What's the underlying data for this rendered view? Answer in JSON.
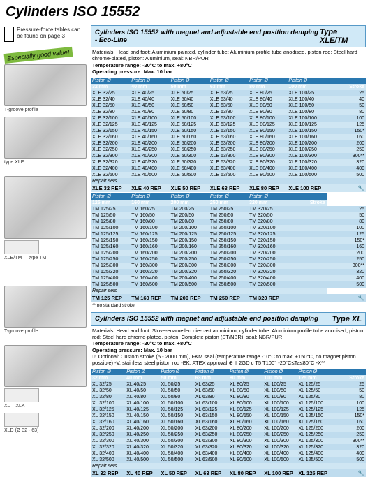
{
  "page_title": "Cylinders ISO 15552",
  "pressure_note": "Pressure-force tables can be found on page 3",
  "good_value": "Especially good value!",
  "captions": {
    "tgroove": "T-groove profile",
    "type_xle": "type XLE",
    "type_tm": "type TM",
    "xle_tm": "XLE/TM",
    "xl": "XL",
    "xlk": "XLK",
    "xld": "XLD (Ø 32 - 63)"
  },
  "section1": {
    "title": "Cylinders ISO 15552 with magnet and adjustable end position damping - Eco-Line",
    "type": "Type XLE/TM",
    "specs": "Materials: Head and foot: Aluminium painted, cylinder tube: Aluminium profile tube anodised, piston rod: Steel hard chrome-plated, piston: Aluminium, seal: NBR/PUR",
    "temp": "Temperature range: -20°C to max. +80°C",
    "press": "Operating pressure: Max. 10 bar",
    "piston_label": "Piston Ø",
    "stroke_label": "Stroke",
    "repair_label": "Repair sets",
    "cols1": [
      "32 mm",
      "40 mm",
      "50 mm",
      "63 mm",
      "80 mm",
      "100 mm"
    ],
    "strokes1": [
      "25",
      "40",
      "50",
      "80",
      "100",
      "125",
      "150*",
      "160",
      "200",
      "250",
      "300**",
      "320",
      "400",
      "500"
    ],
    "data1": [
      [
        "XLE 32/25",
        "XLE 40/25",
        "XLE 50/25",
        "XLE 63/25",
        "XLE 80/25",
        "XLE 100/25"
      ],
      [
        "XLE 32/40",
        "XLE 40/40",
        "XLE 50/40",
        "XLE 63/40",
        "XLE 80/40",
        "XLE 100/40"
      ],
      [
        "XLE 32/50",
        "XLE 40/50",
        "XLE 50/50",
        "XLE 63/50",
        "XLE 80/50",
        "XLE 100/50"
      ],
      [
        "XLE 32/80",
        "XLE 40/80",
        "XLE 50/80",
        "XLE 63/80",
        "XLE 80/80",
        "XLE 100/80"
      ],
      [
        "XLE 32/100",
        "XLE 40/100",
        "XLE 50/100",
        "XLE 63/100",
        "XLE 80/100",
        "XLE 100/100"
      ],
      [
        "XLE 32/125",
        "XLE 40/125",
        "XLE 50/125",
        "XLE 63/125",
        "XLE 80/125",
        "XLE 100/125"
      ],
      [
        "XLE 32/150",
        "XLE 40/150",
        "XLE 50/150",
        "XLE 63/150",
        "XLE 80/150",
        "XLE 100/150"
      ],
      [
        "XLE 32/160",
        "XLE 40/160",
        "XLE 50/160",
        "XLE 63/160",
        "XLE 80/160",
        "XLE 100/160"
      ],
      [
        "XLE 32/200",
        "XLE 40/200",
        "XLE 50/200",
        "XLE 63/200",
        "XLE 80/200",
        "XLE 100/200"
      ],
      [
        "XLE 32/250",
        "XLE 40/250",
        "XLE 50/250",
        "XLE 63/250",
        "XLE 80/250",
        "XLE 100/250"
      ],
      [
        "XLE 32/300",
        "XLE 40/300",
        "XLE 50/300",
        "XLE 63/300",
        "XLE 80/300",
        "XLE 100/300"
      ],
      [
        "XLE 32/320",
        "XLE 40/320",
        "XLE 50/320",
        "XLE 63/320",
        "XLE 80/320",
        "XLE 100/320"
      ],
      [
        "XLE 32/400",
        "XLE 40/400",
        "XLE 50/400",
        "XLE 63/400",
        "XLE 80/400",
        "XLE 100/400"
      ],
      [
        "XLE 32/500",
        "XLE 40/500",
        "XLE 50/500",
        "XLE 63/500",
        "XLE 80/500",
        "XLE 100/500"
      ]
    ],
    "repair1": [
      "XLE 32 REP",
      "XLE 40 REP",
      "XLE 50 REP",
      "XLE 63 REP",
      "XLE 80 REP",
      "XLE 100 REP"
    ],
    "cols2": [
      "125 mm",
      "160 mm",
      "200 mm",
      "250 mm",
      "320 mm"
    ],
    "strokes2": [
      "25",
      "50",
      "80",
      "100",
      "125",
      "150*",
      "160",
      "200",
      "250",
      "300**",
      "320",
      "400",
      "500"
    ],
    "data2": [
      [
        "TM 125/25",
        "TM 160/25",
        "TM 200/25",
        "TM 250/25",
        "TM 320/25"
      ],
      [
        "TM 125/50",
        "TM 160/50",
        "TM 200/50",
        "TM 250/50",
        "TM 320/50"
      ],
      [
        "TM 125/80",
        "TM 160/80",
        "TM 200/80",
        "TM 250/80",
        "TM 320/80"
      ],
      [
        "TM 125/100",
        "TM 160/100",
        "TM 200/100",
        "TM 250/100",
        "TM 320/100"
      ],
      [
        "TM 125/125",
        "TM 160/125",
        "TM 200/125",
        "TM 250/125",
        "TM 320/125"
      ],
      [
        "TM 125/150",
        "TM 160/150",
        "TM 200/150",
        "TM 250/150",
        "TM 320/150"
      ],
      [
        "TM 125/160",
        "TM 160/160",
        "TM 200/160",
        "TM 250/160",
        "TM 320/160"
      ],
      [
        "TM 125/200",
        "TM 160/200",
        "TM 200/200",
        "TM 250/200",
        "TM 320/200"
      ],
      [
        "TM 125/250",
        "TM 160/250",
        "TM 200/250",
        "TM 250/250",
        "TM 320/250"
      ],
      [
        "TM 125/300",
        "TM 160/300",
        "TM 200/300",
        "TM 250/300",
        "TM 320/300"
      ],
      [
        "TM 125/320",
        "TM 160/320",
        "TM 200/320",
        "TM 250/320",
        "TM 320/320"
      ],
      [
        "TM 125/400",
        "TM 160/400",
        "TM 200/400",
        "TM 250/400",
        "TM 320/400"
      ],
      [
        "TM 125/500",
        "TM 160/500",
        "TM 200/500",
        "TM 250/500",
        "TM 320/500"
      ]
    ],
    "repair2": [
      "TM 125 REP",
      "TM 160 REP",
      "TM 200 REP",
      "TM 250 REP",
      "TM 320 REP"
    ],
    "footnote": "** no standard stroke"
  },
  "section2": {
    "title": "Cylinders ISO 15552 with magnet and adjustable end position damping",
    "type": "Type XL",
    "specs": "Materials: Head and foot: Stove-enamelled die-cast aluminium, cylinder tube: Aluminium profile tube anodised, piston rod: Steel hard chrome-plated, piston: Complete piston (ST/NBR), seal: NBR/PUR",
    "temp": "Temperature range: -20°C to max. +80°C",
    "press": "Operating pressure: Max. 10 bar",
    "optional": "☞ Optional: Custom stroke (5 - 2000 mm), FKM seal (temperature range -10°C to max. +150°C, no magnet piston possible) -V, stainless steel piston rod -EK, ATEX approval ⊕ II 2GD c T5 T100° -20°C≤Ta≤80°C -X**",
    "piston_label": "Piston Ø",
    "stroke_label": "Stroke",
    "repair_label": "Repair sets",
    "cols": [
      "32 mm",
      "40 mm",
      "50 mm",
      "63 mm",
      "80 mm",
      "100 mm",
      "125 mm"
    ],
    "strokes": [
      "25",
      "50",
      "80",
      "100",
      "125",
      "150*",
      "160",
      "200",
      "250",
      "300**",
      "320",
      "400",
      "500"
    ],
    "data": [
      [
        "XL 32/25",
        "XL 40/25",
        "XL 50/25",
        "XL 63/25",
        "XL 80/25",
        "XL 100/25",
        "XL 125/25"
      ],
      [
        "XL 32/50",
        "XL 40/50",
        "XL 50/50",
        "XL 63/50",
        "XL 80/50",
        "XL 100/50",
        "XL 125/50"
      ],
      [
        "XL 32/80",
        "XL 40/80",
        "XL 50/80",
        "XL 63/80",
        "XL 80/80",
        "XL 100/80",
        "XL 125/80"
      ],
      [
        "XL 32/100",
        "XL 40/100",
        "XL 50/100",
        "XL 63/100",
        "XL 80/100",
        "XL 100/100",
        "XL 125/100"
      ],
      [
        "XL 32/125",
        "XL 40/125",
        "XL 50/125",
        "XL 63/125",
        "XL 80/125",
        "XL 100/125",
        "XL 125/125"
      ],
      [
        "XL 32/150",
        "XL 40/150",
        "XL 50/150",
        "XL 63/150",
        "XL 80/150",
        "XL 100/150",
        "XL 125/150"
      ],
      [
        "XL 32/160",
        "XL 40/160",
        "XL 50/160",
        "XL 63/160",
        "XL 80/160",
        "XL 100/160",
        "XL 125/160"
      ],
      [
        "XL 32/200",
        "XL 40/200",
        "XL 50/200",
        "XL 63/200",
        "XL 80/200",
        "XL 100/200",
        "XL 125/200"
      ],
      [
        "XL 32/250",
        "XL 40/250",
        "XL 50/250",
        "XL 63/250",
        "XL 80/250",
        "XL 100/250",
        "XL 125/250"
      ],
      [
        "XL 32/300",
        "XL 40/300",
        "XL 50/300",
        "XL 63/300",
        "XL 80/300",
        "XL 100/300",
        "XL 125/300"
      ],
      [
        "XL 32/320",
        "XL 40/320",
        "XL 50/320",
        "XL 63/320",
        "XL 80/320",
        "XL 100/320",
        "XL 125/320"
      ],
      [
        "XL 32/400",
        "XL 40/400",
        "XL 50/400",
        "XL 63/400",
        "XL 80/400",
        "XL 100/400",
        "XL 125/400"
      ],
      [
        "XL 32/500",
        "XL 40/500",
        "XL 50/500",
        "XL 63/500",
        "XL 80/500",
        "XL 100/500",
        "XL 125/500"
      ]
    ],
    "repair": [
      "XL 32 REP",
      "XL 40 REP",
      "XL 50 REP",
      "XL 63 REP",
      "XL 80 REP",
      "XL 100 REP",
      "XL 125 REP"
    ]
  }
}
